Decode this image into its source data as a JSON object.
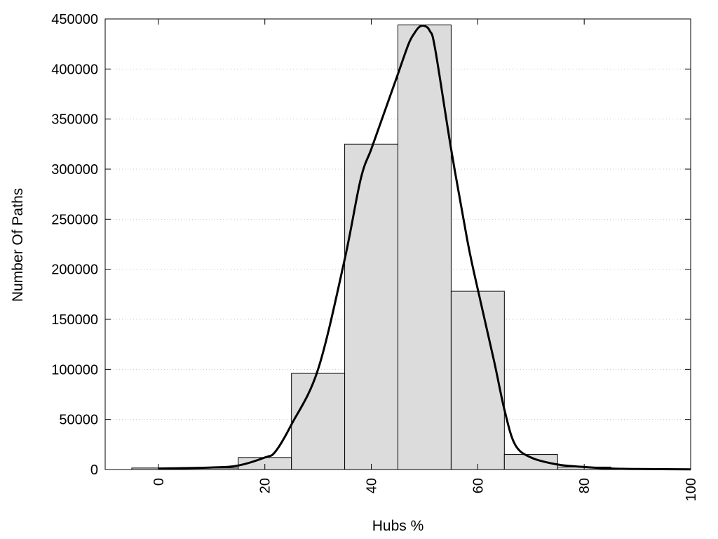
{
  "chart_data": {
    "type": "bar",
    "xlabel": "Hubs %",
    "ylabel": "Number Of Paths",
    "xlim": [
      -10,
      100
    ],
    "ylim": [
      0,
      450000
    ],
    "grid": "horizontal dotted",
    "colors": {
      "bar_fill": "#dcdcdc",
      "bar_stroke": "#000000",
      "curve": "#000000",
      "grid": "#c8c8c8"
    },
    "x_ticks": [
      0,
      20,
      40,
      60,
      80,
      100
    ],
    "x_tick_labels": [
      "0",
      "20",
      "40",
      "60",
      "80",
      "100"
    ],
    "y_ticks": [
      0,
      50000,
      100000,
      150000,
      200000,
      250000,
      300000,
      350000,
      400000,
      450000
    ],
    "y_tick_labels": [
      "0",
      "50000",
      "100000",
      "150000",
      "200000",
      "250000",
      "300000",
      "350000",
      "400000",
      "450000"
    ],
    "bins": [
      {
        "x0": -5,
        "x1": 5,
        "value": 1500
      },
      {
        "x0": 5,
        "x1": 15,
        "value": 1500
      },
      {
        "x0": 15,
        "x1": 25,
        "value": 12000
      },
      {
        "x0": 25,
        "x1": 35,
        "value": 96000
      },
      {
        "x0": 35,
        "x1": 45,
        "value": 325000
      },
      {
        "x0": 45,
        "x1": 55,
        "value": 444000
      },
      {
        "x0": 55,
        "x1": 65,
        "value": 178000
      },
      {
        "x0": 65,
        "x1": 75,
        "value": 15000
      },
      {
        "x0": 75,
        "x1": 85,
        "value": 2500
      },
      {
        "x0": 85,
        "x1": 95,
        "value": 500
      }
    ],
    "curve": {
      "x": [
        0,
        10,
        15,
        20,
        22,
        25,
        30,
        35,
        38,
        40,
        42,
        45,
        47,
        48,
        49,
        50,
        51,
        52,
        55,
        58,
        60,
        63,
        65,
        67,
        70,
        75,
        80,
        85,
        90,
        100
      ],
      "y": [
        1000,
        2000,
        4000,
        12000,
        18000,
        45000,
        100000,
        210000,
        290000,
        320000,
        350000,
        395000,
        425000,
        435000,
        442000,
        443000,
        438000,
        420000,
        320000,
        230000,
        180000,
        110000,
        60000,
        25000,
        12000,
        5000,
        2500,
        1000,
        500,
        200
      ]
    }
  }
}
